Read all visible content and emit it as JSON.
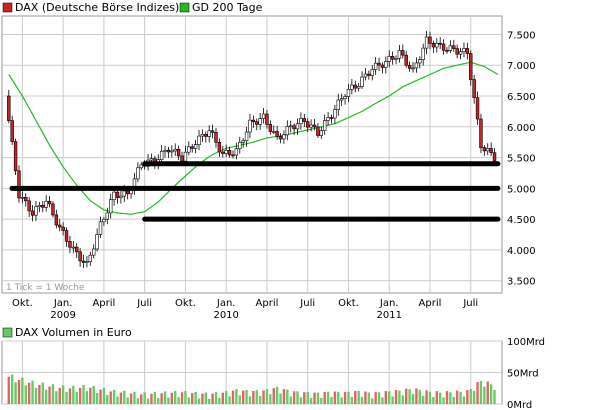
{
  "legend": {
    "main_series": "DAX (Deutsche Börse Indizes)",
    "ma_series": "GD 200 Tage",
    "volume_series": "DAX Volumen in Euro"
  },
  "note": "1 Tick = 1 Woche",
  "colors": {
    "up_candle": "#ffffff",
    "down_candle": "#cc2222",
    "ma_line": "#22bb22",
    "support_lines": "#000000",
    "grid": "#cccccc",
    "volume_bar": "#66cc66",
    "volume_bar_down": "#dd6666",
    "main_legend_swatch": "#cc2222",
    "ma_legend_swatch": "#22bb22",
    "volume_legend_swatch": "#66cc66"
  },
  "chart_data": {
    "type": "line",
    "title": "",
    "xlabel": "",
    "ylabel": "",
    "ylim": [
      3300,
      7800
    ],
    "y_ticks": [
      "3.500",
      "4.000",
      "4.500",
      "5.000",
      "5.500",
      "6.000",
      "6.500",
      "7.000",
      "7.500"
    ],
    "y_tick_values": [
      3500,
      4000,
      4500,
      5000,
      5500,
      6000,
      6500,
      7000,
      7500
    ],
    "x_ticks": [
      "Okt.",
      "Jan.",
      "April",
      "Juli",
      "Okt.",
      "Jan.",
      "April",
      "Juli",
      "Okt.",
      "Jan.",
      "April",
      "Juli"
    ],
    "x_tick_dates": [
      "2008-10",
      "2009-01",
      "2009-04",
      "2009-07",
      "2009-10",
      "2010-01",
      "2010-04",
      "2010-07",
      "2010-10",
      "2011-01",
      "2011-04",
      "2011-07"
    ],
    "year_labels": [
      {
        "label": "2009",
        "date": "2009-01"
      },
      {
        "label": "2010",
        "date": "2010-01"
      },
      {
        "label": "2011",
        "date": "2011-01"
      }
    ],
    "x": [
      "2008-09",
      "2008-10",
      "2008-11",
      "2008-12",
      "2009-01",
      "2009-02",
      "2009-03",
      "2009-04",
      "2009-05",
      "2009-06",
      "2009-07",
      "2009-08",
      "2009-09",
      "2009-10",
      "2009-11",
      "2009-12",
      "2010-01",
      "2010-02",
      "2010-03",
      "2010-04",
      "2010-05",
      "2010-06",
      "2010-07",
      "2010-08",
      "2010-09",
      "2010-10",
      "2010-11",
      "2010-12",
      "2011-01",
      "2011-02",
      "2011-03",
      "2011-04",
      "2011-05",
      "2011-06",
      "2011-07",
      "2011-08",
      "2011-09"
    ],
    "series": [
      {
        "name": "DAX (Deutsche Börse Indizes)",
        "values": [
          6500,
          4900,
          4600,
          4800,
          4350,
          4000,
          3750,
          4400,
          4900,
          4900,
          5400,
          5450,
          5650,
          5500,
          5750,
          5950,
          5550,
          5600,
          6050,
          6150,
          5800,
          6000,
          6100,
          5900,
          6200,
          6550,
          6700,
          6950,
          7050,
          7200,
          6900,
          7400,
          7300,
          7250,
          7200,
          5700,
          5500
        ]
      },
      {
        "name": "GD 200 Tage",
        "values": [
          6850,
          6500,
          6100,
          5700,
          5350,
          5050,
          4800,
          4650,
          4600,
          4580,
          4620,
          4780,
          5000,
          5200,
          5400,
          5550,
          5650,
          5700,
          5750,
          5820,
          5850,
          5900,
          5950,
          6000,
          6050,
          6150,
          6250,
          6380,
          6500,
          6650,
          6750,
          6850,
          6950,
          7000,
          7050,
          6980,
          6850
        ]
      }
    ],
    "support_levels": [
      {
        "value": 5400,
        "from": "2009-07",
        "to": "2011-09"
      },
      {
        "value": 5000,
        "from": "2008-09",
        "to": "2011-09"
      },
      {
        "value": 4500,
        "from": "2009-07",
        "to": "2011-09"
      }
    ],
    "volume": {
      "name": "DAX Volumen in Euro",
      "y_ticks": [
        "0Mrd",
        "50Mrd",
        "100Mrd"
      ],
      "y_tick_values": [
        0,
        50,
        100
      ],
      "ylim": [
        0,
        100
      ],
      "values": [
        45,
        38,
        32,
        28,
        25,
        24,
        26,
        22,
        18,
        16,
        14,
        15,
        16,
        17,
        15,
        14,
        16,
        20,
        18,
        19,
        24,
        18,
        16,
        15,
        17,
        16,
        18,
        15,
        17,
        19,
        22,
        18,
        16,
        17,
        18,
        35,
        28
      ]
    },
    "grid": true,
    "legend_position": "top-left"
  }
}
